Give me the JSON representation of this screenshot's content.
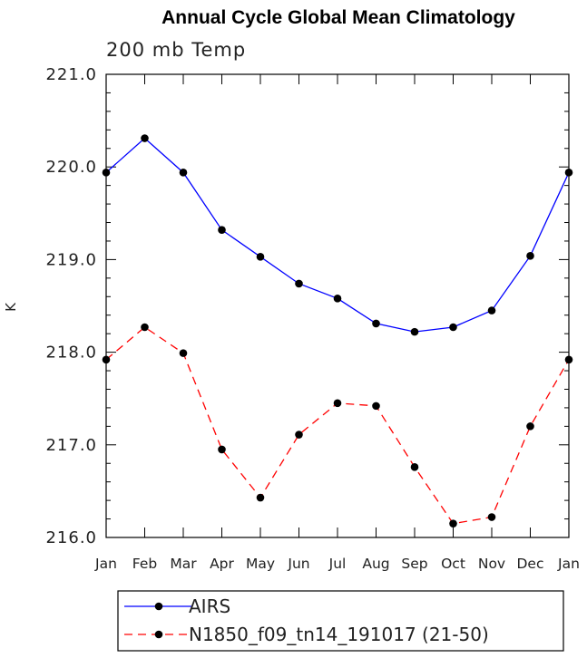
{
  "chart_data": {
    "type": "line",
    "title": "Annual Cycle Global Mean Climatology",
    "subtitle": "200 mb Temp",
    "ylabel": "K",
    "xlabel": "",
    "ylim": [
      216.0,
      221.0
    ],
    "yticks": [
      "216.0",
      "217.0",
      "218.0",
      "219.0",
      "220.0",
      "221.0"
    ],
    "categories": [
      "Jan",
      "Feb",
      "Mar",
      "Apr",
      "May",
      "Jun",
      "Jul",
      "Aug",
      "Sep",
      "Oct",
      "Nov",
      "Dec",
      "Jan"
    ],
    "grid": false,
    "legend_position": "bottom",
    "series": [
      {
        "name": "AIRS",
        "color": "#0000ff",
        "dashed": false,
        "values": [
          219.94,
          220.31,
          219.94,
          219.32,
          219.03,
          218.74,
          218.58,
          218.31,
          218.22,
          218.27,
          218.45,
          219.04,
          219.94
        ]
      },
      {
        "name": "N1850_f09_tn14_191017 (21-50)",
        "color": "#ff0000",
        "dashed": true,
        "values": [
          217.92,
          218.27,
          217.99,
          216.95,
          216.43,
          217.11,
          217.45,
          217.42,
          216.76,
          216.15,
          216.22,
          217.2,
          217.92
        ]
      }
    ]
  }
}
